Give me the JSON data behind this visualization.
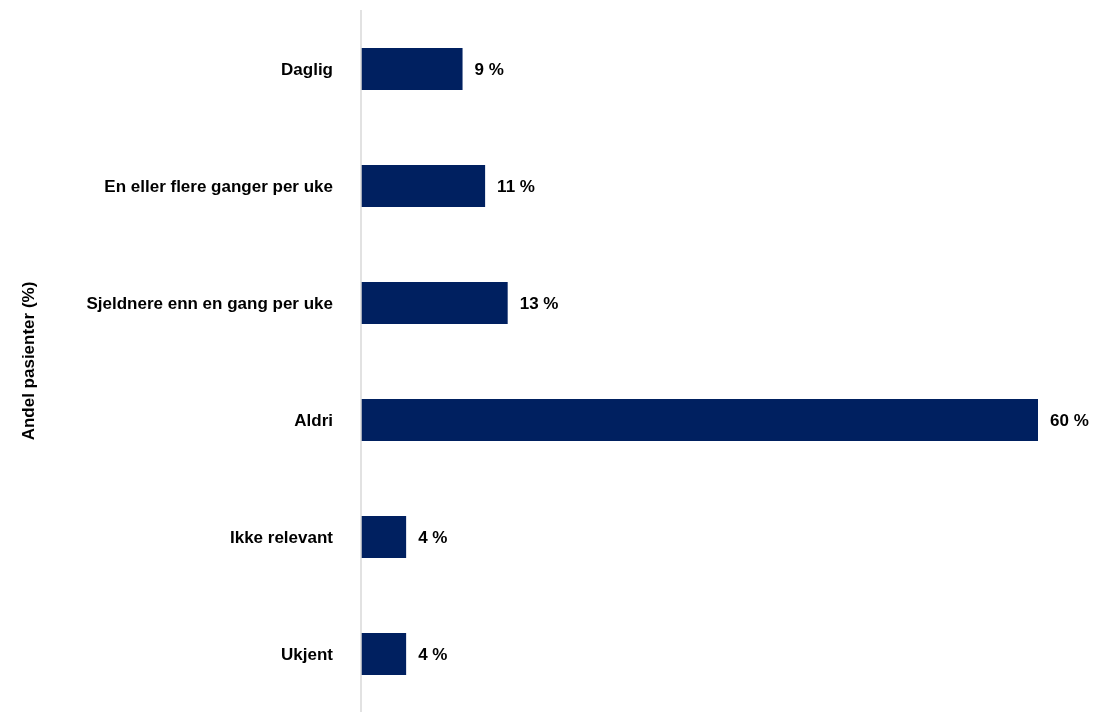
{
  "chart_data": {
    "type": "bar",
    "orientation": "horizontal",
    "ylabel": "Andel pasienter (%)",
    "categories": [
      "Daglig",
      "En eller flere ganger per uke",
      "Sjeldnere enn en gang per uke",
      "Aldri",
      "Ikke  relevant",
      "Ukjent"
    ],
    "values": [
      9,
      11,
      13,
      60,
      4,
      4
    ],
    "value_labels": [
      "9 %",
      "11 %",
      "13 %",
      "60 %",
      "4 %",
      "4 %"
    ],
    "color": "#002060",
    "grid": false,
    "legend": false
  }
}
